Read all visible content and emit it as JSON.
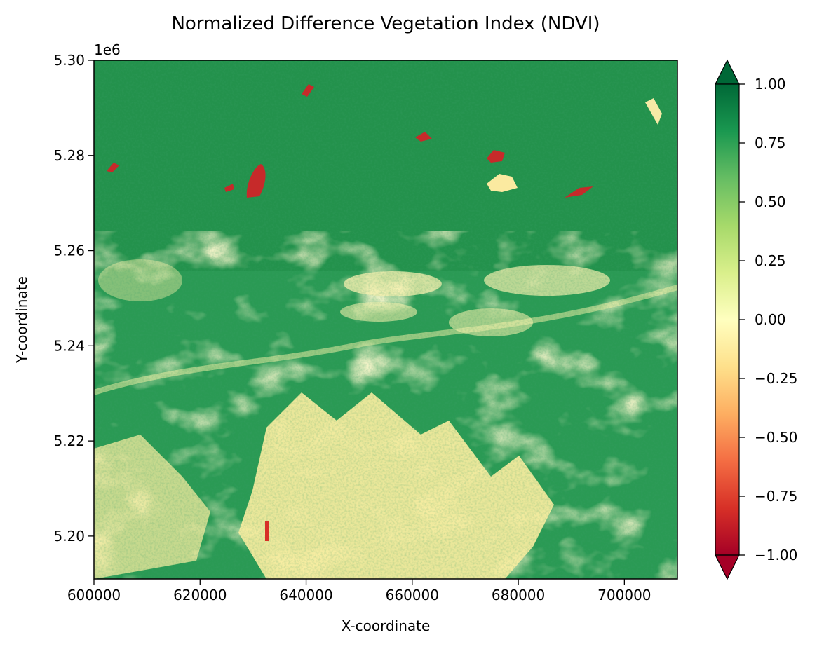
{
  "chart_data": {
    "type": "heatmap",
    "title": "Normalized Difference Vegetation Index (NDVI)",
    "xlabel": "X-coordinate",
    "ylabel": "Y-coordinate",
    "y_offset_label": "1e6",
    "xlim": [
      600000,
      710000
    ],
    "ylim": [
      5.191,
      5.3
    ],
    "x_ticks": [
      600000,
      620000,
      640000,
      660000,
      680000,
      700000
    ],
    "x_tick_labels": [
      "600000",
      "620000",
      "640000",
      "660000",
      "680000",
      "700000"
    ],
    "y_ticks": [
      5.2,
      5.22,
      5.24,
      5.26,
      5.28,
      5.3
    ],
    "y_tick_labels": [
      "5.20",
      "5.22",
      "5.24",
      "5.26",
      "5.28",
      "5.30"
    ],
    "colorbar": {
      "colormap": "RdYlGn",
      "range": [
        -1.0,
        1.0
      ],
      "extend": "both",
      "ticks": [
        -1.0,
        -0.75,
        -0.5,
        -0.25,
        0.0,
        0.25,
        0.5,
        0.75,
        1.0
      ],
      "tick_labels": [
        "−1.00",
        "−0.75",
        "−0.50",
        "−0.25",
        "0.00",
        "0.25",
        "0.50",
        "0.75",
        "1.00"
      ],
      "extend_colors": {
        "under": "#a50026",
        "over": "#006837"
      }
    },
    "colors": {
      "high_vegetation": "#1a9850",
      "dense_vegetation": "#006837",
      "bare_low": "#fee08b",
      "neutral": "#ffffbf",
      "water_negative": "#d73027"
    }
  }
}
